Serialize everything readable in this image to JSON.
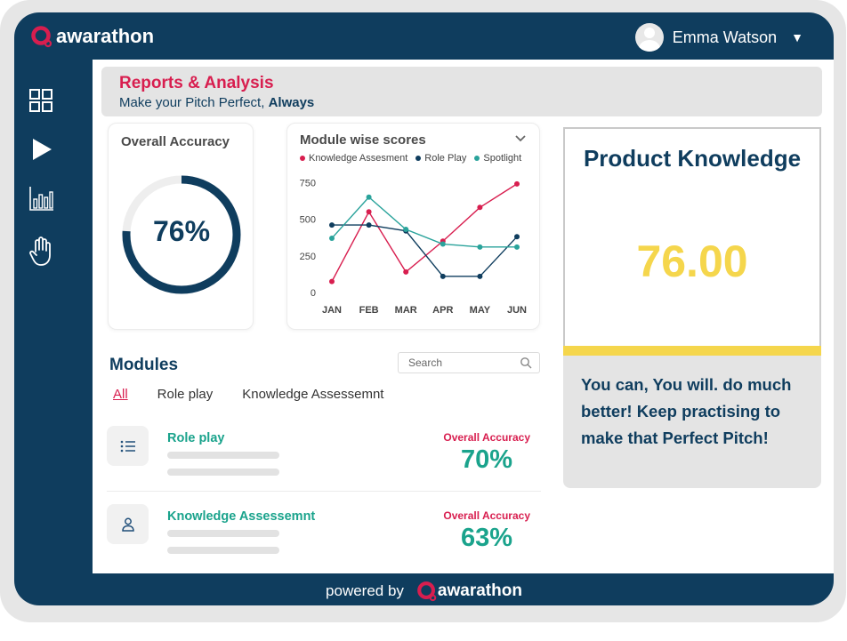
{
  "app": {
    "logo_text": "awarathon",
    "user_name": "Emma Watson"
  },
  "sidebar": {
    "items": [
      {
        "icon": "dashboard-grid-icon"
      },
      {
        "icon": "play-icon"
      },
      {
        "icon": "bar-chart-icon"
      },
      {
        "icon": "hand-icon"
      }
    ]
  },
  "banner": {
    "title": "Reports & Analysis",
    "subtitle": "Make your Pitch Perfect, ",
    "subtitle_bold": "Always"
  },
  "overall_accuracy": {
    "title": "Overall Accuracy",
    "value_text": "76%",
    "value": 76
  },
  "module_scores": {
    "title": "Module wise scores"
  },
  "chart_data": {
    "type": "line",
    "title": "Module wise scores",
    "categories": [
      "JAN",
      "FEB",
      "MAR",
      "APR",
      "MAY",
      "JUN"
    ],
    "yticks": [
      0,
      250,
      500,
      750
    ],
    "ylim": [
      0,
      800
    ],
    "series": [
      {
        "name": "Knowledge Assesment",
        "color": "#d81e4f",
        "values": [
          75,
          550,
          140,
          350,
          580,
          740
        ]
      },
      {
        "name": "Role Play",
        "color": "#0f3d5e",
        "values": [
          460,
          460,
          420,
          110,
          110,
          380
        ]
      },
      {
        "name": "Spotlight",
        "color": "#2aa39b",
        "values": [
          370,
          650,
          430,
          330,
          310,
          310
        ]
      }
    ],
    "legend": "top",
    "grid": false
  },
  "product_knowledge": {
    "title": "Product Knowledge",
    "score": "76.00",
    "message": "You can, You will. do much better! Keep practising to make that Perfect Pitch!"
  },
  "modules": {
    "heading": "Modules",
    "search_placeholder": "Search",
    "tabs": [
      {
        "label": "All",
        "active": true
      },
      {
        "label": "Role play",
        "active": false
      },
      {
        "label": "Knowledge Assessemnt",
        "active": false
      }
    ],
    "rows": [
      {
        "name": "Role play",
        "icon": "list-icon",
        "acc_label": "Overall Accuracy",
        "acc_value": "70%"
      },
      {
        "name": "Knowledge Assessemnt",
        "icon": "person-icon",
        "acc_label": "Overall Accuracy",
        "acc_value": "63%"
      }
    ]
  },
  "footer": {
    "powered_by": "powered by",
    "logo_text": "awarathon"
  },
  "colors": {
    "navy": "#0f3d5e",
    "accent_red": "#d81e4f",
    "teal": "#1aa38c",
    "yellow": "#f5d64c"
  }
}
